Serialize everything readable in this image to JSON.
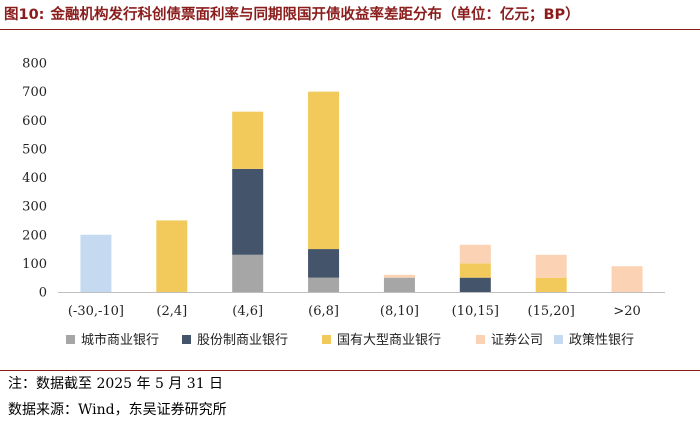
{
  "figure": {
    "number": "图10:",
    "title": "金融机构发行科创债票面利率与同期限国开债收益率差距分布（单位：亿元；BP）"
  },
  "chart_data": {
    "type": "bar",
    "stacked": true,
    "categories": [
      "(-30,-10]",
      "(2,4]",
      "(4,6]",
      "(6,8]",
      "(8,10]",
      "(10,15]",
      "(15,20]",
      ">20"
    ],
    "series": [
      {
        "name": "城市商业银行",
        "color": "#a6a6a6",
        "values": [
          0,
          0,
          130,
          50,
          50,
          0,
          0,
          0
        ]
      },
      {
        "name": "股份制商业银行",
        "color": "#44546a",
        "values": [
          0,
          0,
          300,
          100,
          0,
          50,
          0,
          0
        ]
      },
      {
        "name": "国有大型商业银行",
        "color": "#f2ca5b",
        "values": [
          0,
          250,
          200,
          550,
          0,
          50,
          50,
          0
        ]
      },
      {
        "name": "证券公司",
        "color": "#fbd2b4",
        "values": [
          0,
          0,
          0,
          0,
          10,
          65,
          80,
          90
        ]
      },
      {
        "name": "政策性银行",
        "color": "#c5d9f1",
        "values": [
          200,
          0,
          0,
          0,
          0,
          0,
          0,
          0
        ]
      }
    ],
    "ylim": [
      0,
      800
    ],
    "yticks": [
      0,
      100,
      200,
      300,
      400,
      500,
      600,
      700,
      800
    ],
    "xlabel": "",
    "ylabel": "",
    "legend_position": "bottom"
  },
  "footer": {
    "note": "注：数据截至 2025 年 5 月 31 日",
    "source": "数据来源：Wind，东吴证券研究所"
  }
}
